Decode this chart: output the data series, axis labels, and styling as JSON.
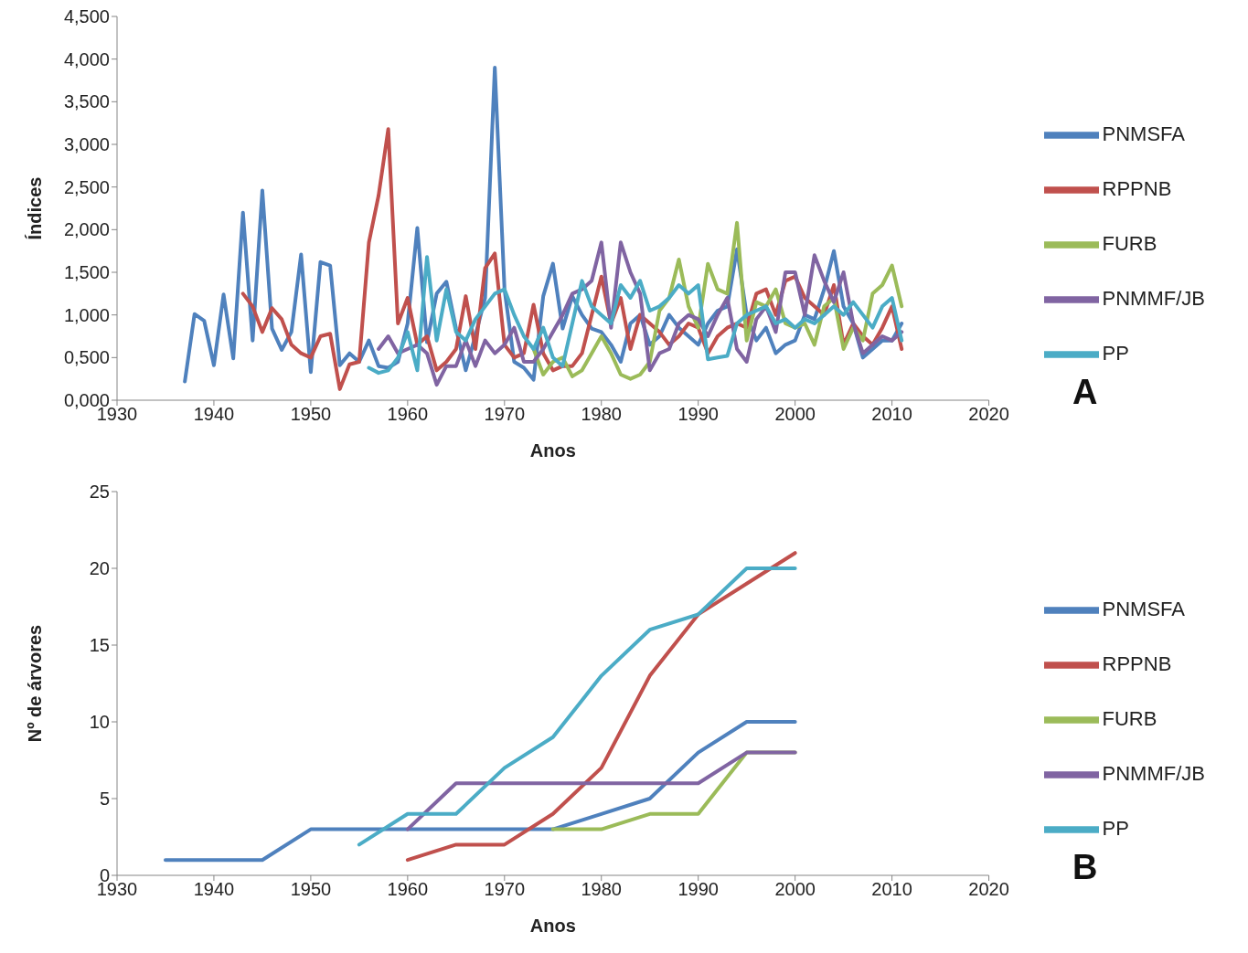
{
  "chart_data": [
    {
      "type": "line",
      "xlabel": "Anos",
      "ylabel": "Índices",
      "annotations": [
        "A"
      ],
      "legend": "right",
      "grid": false,
      "marker": "none",
      "line_style": "solid",
      "x": [
        1937,
        1938,
        1939,
        1940,
        1941,
        1942,
        1943,
        1944,
        1945,
        1946,
        1947,
        1948,
        1949,
        1950,
        1951,
        1952,
        1953,
        1954,
        1955,
        1956,
        1957,
        1958,
        1959,
        1960,
        1961,
        1962,
        1963,
        1964,
        1965,
        1966,
        1967,
        1968,
        1969,
        1970,
        1971,
        1972,
        1973,
        1974,
        1975,
        1976,
        1977,
        1978,
        1979,
        1980,
        1981,
        1982,
        1983,
        1984,
        1985,
        1986,
        1987,
        1988,
        1989,
        1990,
        1991,
        1992,
        1993,
        1994,
        1995,
        1996,
        1997,
        1998,
        1999,
        2000,
        2001,
        2002,
        2003,
        2004,
        2005,
        2006,
        2007,
        2008,
        2009,
        2010,
        2011
      ],
      "xlim": [
        1930,
        2020
      ],
      "xticks": [
        1930,
        1940,
        1950,
        1960,
        1970,
        1980,
        1990,
        2000,
        2010,
        2020
      ],
      "ylim": [
        0,
        4.5
      ],
      "yticks": [
        {
          "value": 0,
          "label": "0,000"
        },
        {
          "value": 0.5,
          "label": "0,500"
        },
        {
          "value": 1,
          "label": "1,000"
        },
        {
          "value": 1.5,
          "label": "1,500"
        },
        {
          "value": 2,
          "label": "2,000"
        },
        {
          "value": 2.5,
          "label": "2,500"
        },
        {
          "value": 3,
          "label": "3,000"
        },
        {
          "value": 3.5,
          "label": "3,500"
        },
        {
          "value": 4,
          "label": "4,000"
        },
        {
          "value": 4.5,
          "label": "4,500"
        }
      ],
      "series": [
        {
          "name": "PNMSFA",
          "color": "#4f81bd",
          "values": [
            0.22,
            1.01,
            0.93,
            0.41,
            1.24,
            0.49,
            2.2,
            0.7,
            2.46,
            0.84,
            0.59,
            0.8,
            1.71,
            0.33,
            1.62,
            1.58,
            0.41,
            0.55,
            0.45,
            0.7,
            0.4,
            0.38,
            0.45,
            0.9,
            2.02,
            0.68,
            1.25,
            1.39,
            0.84,
            0.35,
            0.76,
            1.2,
            3.9,
            1.3,
            0.45,
            0.38,
            0.24,
            1.22,
            1.6,
            0.84,
            1.22,
            1.0,
            0.84,
            0.8,
            0.65,
            0.45,
            0.9,
            1.0,
            0.65,
            0.75,
            1.0,
            0.85,
            0.75,
            0.65,
            0.9,
            1.05,
            1.1,
            1.77,
            1.0,
            0.7,
            0.85,
            0.55,
            0.65,
            0.7,
            1.0,
            0.95,
            1.3,
            1.75,
            1.1,
            0.9,
            0.5,
            0.6,
            0.7,
            0.7,
            0.9
          ]
        },
        {
          "name": "RPPNB",
          "color": "#c0504d",
          "values": [
            null,
            null,
            null,
            null,
            null,
            null,
            1.25,
            1.1,
            0.8,
            1.08,
            0.95,
            0.65,
            0.55,
            0.5,
            0.75,
            0.78,
            0.13,
            0.42,
            0.45,
            1.85,
            2.4,
            3.18,
            0.9,
            1.2,
            0.65,
            0.75,
            0.35,
            0.45,
            0.6,
            1.22,
            0.6,
            1.55,
            1.72,
            0.65,
            0.5,
            0.55,
            1.12,
            0.55,
            0.35,
            0.4,
            0.4,
            0.55,
            1.0,
            1.45,
            0.9,
            1.2,
            0.6,
            1.0,
            0.9,
            0.8,
            0.65,
            0.75,
            0.9,
            0.85,
            0.55,
            0.75,
            0.85,
            0.9,
            0.85,
            1.25,
            1.3,
            1.0,
            1.4,
            1.45,
            1.2,
            1.1,
            1.0,
            1.35,
            0.65,
            0.9,
            0.75,
            0.65,
            0.85,
            1.1,
            0.6
          ]
        },
        {
          "name": "FURB",
          "color": "#9bbb59",
          "values": [
            null,
            null,
            null,
            null,
            null,
            null,
            null,
            null,
            null,
            null,
            null,
            null,
            null,
            null,
            null,
            null,
            null,
            null,
            null,
            null,
            null,
            null,
            null,
            null,
            null,
            null,
            null,
            null,
            null,
            null,
            null,
            null,
            null,
            null,
            null,
            null,
            0.6,
            0.3,
            0.45,
            0.5,
            0.28,
            0.35,
            0.55,
            0.75,
            0.55,
            0.3,
            0.25,
            0.3,
            0.45,
            1.05,
            1.2,
            1.65,
            1.1,
            0.85,
            1.6,
            1.3,
            1.25,
            2.08,
            0.7,
            1.15,
            1.1,
            1.3,
            0.9,
            0.85,
            0.9,
            0.65,
            1.1,
            1.2,
            0.6,
            0.85,
            0.7,
            1.25,
            1.35,
            1.58,
            1.1
          ]
        },
        {
          "name": "PNMMF/JB",
          "color": "#8064a2",
          "values": [
            null,
            null,
            null,
            null,
            null,
            null,
            null,
            null,
            null,
            null,
            null,
            null,
            null,
            null,
            null,
            null,
            null,
            null,
            null,
            null,
            0.6,
            0.75,
            0.55,
            0.6,
            0.65,
            0.55,
            0.18,
            0.4,
            0.4,
            0.7,
            0.4,
            0.7,
            0.55,
            0.65,
            0.85,
            0.45,
            0.45,
            0.6,
            0.8,
            1.0,
            1.25,
            1.3,
            1.4,
            1.85,
            0.85,
            1.85,
            1.5,
            1.25,
            0.35,
            0.55,
            0.6,
            0.9,
            1.0,
            0.95,
            0.75,
            1.0,
            1.2,
            0.6,
            0.45,
            0.95,
            1.1,
            0.8,
            1.5,
            1.5,
            1.0,
            1.7,
            1.4,
            1.15,
            1.5,
            0.9,
            0.55,
            0.65,
            0.75,
            0.7,
            0.8
          ]
        },
        {
          "name": "PP",
          "color": "#4bacc6",
          "values": [
            null,
            null,
            null,
            null,
            null,
            null,
            null,
            null,
            null,
            null,
            null,
            null,
            null,
            null,
            null,
            null,
            null,
            null,
            null,
            0.38,
            0.32,
            0.35,
            0.5,
            0.8,
            0.35,
            1.68,
            0.7,
            1.3,
            0.8,
            0.7,
            0.95,
            1.1,
            1.25,
            1.3,
            1.0,
            0.75,
            0.6,
            0.85,
            0.5,
            0.4,
            0.9,
            1.4,
            1.1,
            1.0,
            0.9,
            1.35,
            1.2,
            1.4,
            1.05,
            1.1,
            1.2,
            1.35,
            1.25,
            1.35,
            0.48,
            0.5,
            0.52,
            0.9,
            1.0,
            1.05,
            1.1,
            0.9,
            0.95,
            0.85,
            0.95,
            0.9,
            1.0,
            1.1,
            1.0,
            1.15,
            1.0,
            0.85,
            1.1,
            1.2,
            0.7
          ]
        }
      ]
    },
    {
      "type": "line",
      "xlabel": "Anos",
      "ylabel": "Nº de árvores",
      "annotations": [
        "B"
      ],
      "legend": "right",
      "grid": false,
      "marker": "none",
      "line_style": "solid",
      "x": [
        1935,
        1940,
        1945,
        1950,
        1955,
        1960,
        1965,
        1970,
        1975,
        1980,
        1985,
        1990,
        1995,
        2000
      ],
      "xlim": [
        1930,
        2020
      ],
      "xticks": [
        1930,
        1940,
        1950,
        1960,
        1970,
        1980,
        1990,
        2000,
        2010,
        2020
      ],
      "ylim": [
        0,
        25
      ],
      "yticks": [
        0,
        5,
        10,
        15,
        20,
        25
      ],
      "series": [
        {
          "name": "PNMSFA",
          "color": "#4f81bd",
          "values": [
            1,
            1,
            1,
            3,
            3,
            3,
            3,
            3,
            3,
            4,
            5,
            8,
            10,
            10
          ]
        },
        {
          "name": "RPPNB",
          "color": "#c0504d",
          "values": [
            null,
            null,
            null,
            null,
            null,
            1,
            2,
            2,
            4,
            7,
            13,
            17,
            19,
            21
          ]
        },
        {
          "name": "FURB",
          "color": "#9bbb59",
          "values": [
            null,
            null,
            null,
            null,
            null,
            null,
            null,
            null,
            3,
            3,
            4,
            4,
            8,
            8
          ]
        },
        {
          "name": "PNMMF/JB",
          "color": "#8064a2",
          "values": [
            null,
            null,
            null,
            null,
            null,
            3,
            6,
            6,
            6,
            6,
            6,
            6,
            8,
            8
          ]
        },
        {
          "name": "PP",
          "color": "#4bacc6",
          "values": [
            null,
            null,
            null,
            null,
            2,
            4,
            4,
            7,
            9,
            13,
            16,
            17,
            20,
            20
          ]
        }
      ]
    }
  ]
}
